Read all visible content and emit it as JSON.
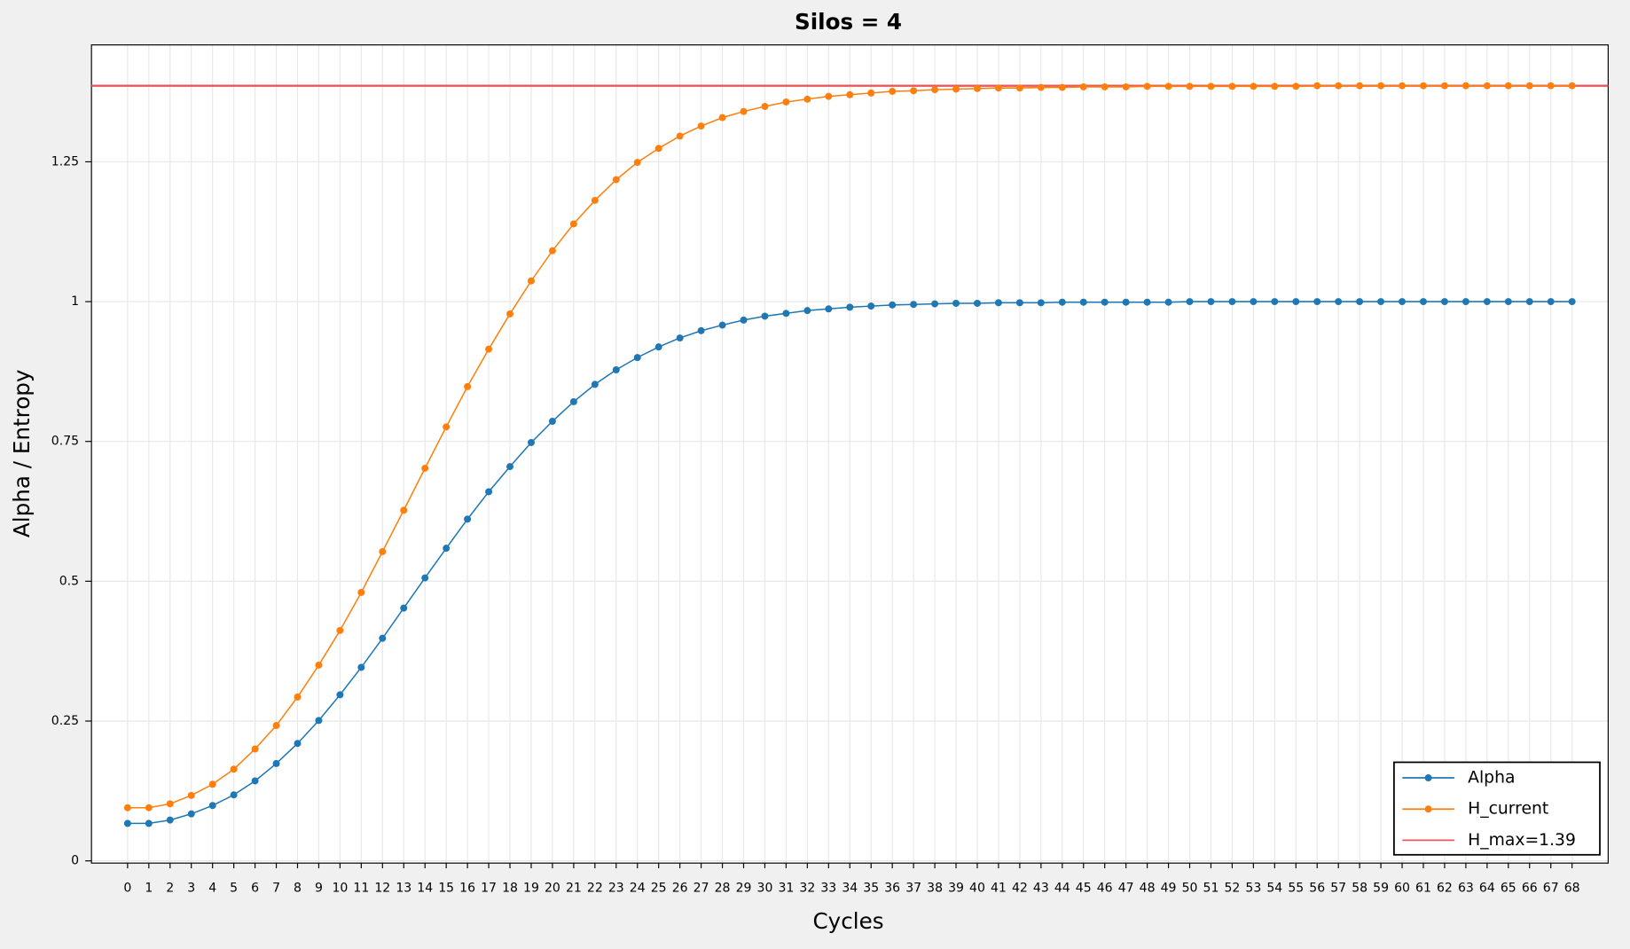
{
  "chart_data": {
    "type": "line",
    "title": "Silos = 4",
    "xlabel": "Cycles",
    "ylabel": "Alpha / Entropy",
    "x": [
      0,
      1,
      2,
      3,
      4,
      5,
      6,
      7,
      8,
      9,
      10,
      11,
      12,
      13,
      14,
      15,
      16,
      17,
      18,
      19,
      20,
      21,
      22,
      23,
      24,
      25,
      26,
      27,
      28,
      29,
      30,
      31,
      32,
      33,
      34,
      35,
      36,
      37,
      38,
      39,
      40,
      41,
      42,
      43,
      44,
      45,
      46,
      47,
      48,
      49,
      50,
      51,
      52,
      53,
      54,
      55,
      56,
      57,
      58,
      59,
      60,
      61,
      62,
      63,
      64,
      65,
      66,
      67,
      68
    ],
    "series": [
      {
        "name": "Alpha",
        "color": "#1f77b4",
        "values": [
          0.067,
          0.067,
          0.073,
          0.084,
          0.099,
          0.118,
          0.143,
          0.174,
          0.21,
          0.251,
          0.297,
          0.346,
          0.398,
          0.452,
          0.506,
          0.559,
          0.611,
          0.66,
          0.705,
          0.748,
          0.786,
          0.821,
          0.852,
          0.878,
          0.9,
          0.919,
          0.935,
          0.948,
          0.958,
          0.967,
          0.974,
          0.979,
          0.984,
          0.987,
          0.99,
          0.992,
          0.994,
          0.995,
          0.996,
          0.997,
          0.997,
          0.998,
          0.998,
          0.998,
          0.999,
          0.999,
          0.999,
          0.999,
          0.999,
          0.999,
          1,
          1,
          1,
          1,
          1,
          1,
          1,
          1,
          1,
          1,
          1,
          1,
          1,
          1,
          1,
          1,
          1,
          1,
          1
        ]
      },
      {
        "name": "H_current",
        "color": "#ff7f0e",
        "values": [
          0.095,
          0.095,
          0.102,
          0.117,
          0.137,
          0.164,
          0.2,
          0.242,
          0.293,
          0.35,
          0.412,
          0.48,
          0.553,
          0.627,
          0.702,
          0.776,
          0.848,
          0.915,
          0.978,
          1.037,
          1.091,
          1.139,
          1.181,
          1.218,
          1.249,
          1.274,
          1.296,
          1.314,
          1.329,
          1.34,
          1.349,
          1.357,
          1.362,
          1.367,
          1.37,
          1.373,
          1.376,
          1.377,
          1.379,
          1.38,
          1.381,
          1.382,
          1.382,
          1.383,
          1.383,
          1.384,
          1.384,
          1.384,
          1.385,
          1.385,
          1.385,
          1.385,
          1.385,
          1.385,
          1.385,
          1.385,
          1.386,
          1.386,
          1.386,
          1.386,
          1.386,
          1.386,
          1.386,
          1.386,
          1.386,
          1.386,
          1.386,
          1.386,
          1.386
        ]
      }
    ],
    "hline": {
      "name": "H_max=1.39",
      "value": 1.386,
      "color": "#e8585a"
    },
    "xlim": [
      -1.7,
      69.7
    ],
    "ylim": [
      -0.004,
      1.459
    ],
    "xticks": [
      0,
      1,
      2,
      3,
      4,
      5,
      6,
      7,
      8,
      9,
      10,
      11,
      12,
      13,
      14,
      15,
      16,
      17,
      18,
      19,
      20,
      21,
      22,
      23,
      24,
      25,
      26,
      27,
      28,
      29,
      30,
      31,
      32,
      33,
      34,
      35,
      36,
      37,
      38,
      39,
      40,
      41,
      42,
      43,
      44,
      45,
      46,
      47,
      48,
      49,
      50,
      51,
      52,
      53,
      54,
      55,
      56,
      57,
      58,
      59,
      60,
      61,
      62,
      63,
      64,
      65,
      66,
      67,
      68
    ],
    "yticks": [
      0,
      0.25,
      0.5,
      0.75,
      1,
      1.25
    ],
    "grid": true,
    "legend": "lower right"
  }
}
